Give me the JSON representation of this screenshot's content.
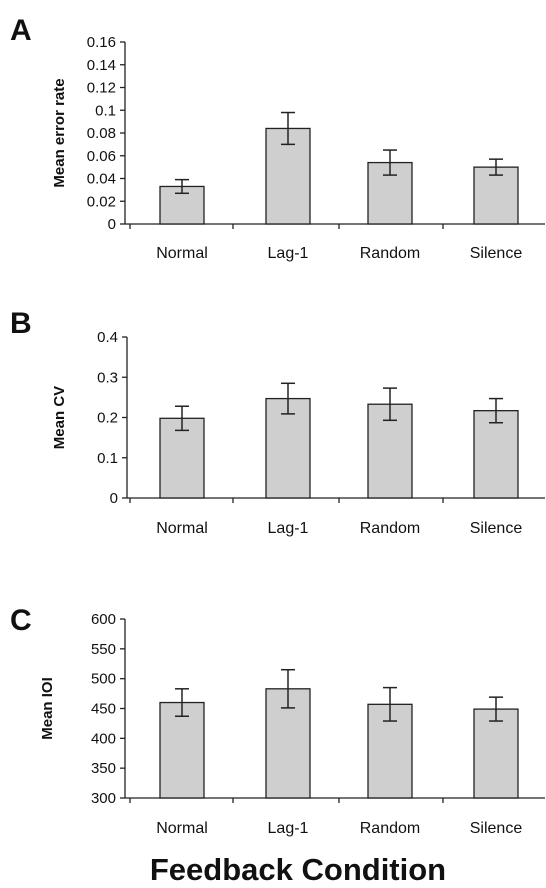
{
  "x_title": "Feedback Condition",
  "chart_data": [
    {
      "type": "bar",
      "panel": "A",
      "ylabel": "Mean error rate",
      "categories": [
        "Normal",
        "Lag-1",
        "Random",
        "Silence"
      ],
      "values": [
        0.033,
        0.084,
        0.054,
        0.05
      ],
      "errors": [
        0.006,
        0.014,
        0.011,
        0.007
      ],
      "ylim": [
        0,
        0.16
      ],
      "yticks": [
        0,
        0.02,
        0.04,
        0.06,
        0.08,
        0.1,
        0.12,
        0.14,
        0.16
      ],
      "ytick_labels": [
        "0",
        "0.02",
        "0.04",
        "0.06",
        "0.08",
        "0.1",
        "0.12",
        "0.14",
        "0.16"
      ],
      "grid": false
    },
    {
      "type": "bar",
      "panel": "B",
      "ylabel": "Mean CV",
      "categories": [
        "Normal",
        "Lag-1",
        "Random",
        "Silence"
      ],
      "values": [
        0.198,
        0.247,
        0.233,
        0.217
      ],
      "errors": [
        0.03,
        0.038,
        0.04,
        0.03
      ],
      "ylim": [
        0,
        0.4
      ],
      "yticks": [
        0,
        0.1,
        0.2,
        0.3,
        0.4
      ],
      "ytick_labels": [
        "0",
        "0.1",
        "0.2",
        "0.3",
        "0.4"
      ],
      "grid": false
    },
    {
      "type": "bar",
      "panel": "C",
      "ylabel": "Mean IOI",
      "categories": [
        "Normal",
        "Lag-1",
        "Random",
        "Silence"
      ],
      "values": [
        460,
        483,
        457,
        449
      ],
      "errors": [
        23,
        32,
        28,
        20
      ],
      "ylim": [
        300,
        600
      ],
      "yticks": [
        300,
        350,
        400,
        450,
        500,
        550,
        600
      ],
      "ytick_labels": [
        "300",
        "350",
        "400",
        "450",
        "500",
        "550",
        "600"
      ],
      "grid": false
    }
  ]
}
